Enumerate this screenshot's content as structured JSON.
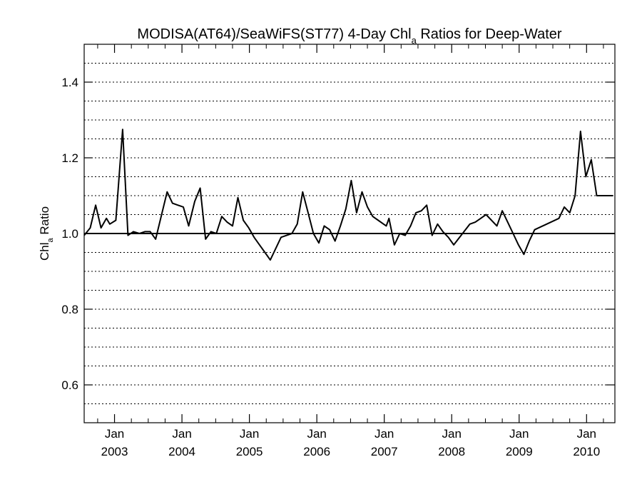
{
  "chart_data": {
    "type": "line",
    "title": {
      "main": "MODISA(AT64)/SeaWiFS(ST77) 4-Day Chl",
      "sub": "a",
      "rest": " Ratios for Deep-Water"
    },
    "ylabel": {
      "main": "Chl",
      "sub": "a",
      "rest": " Ratio"
    },
    "ylim": [
      0.5,
      1.5
    ],
    "yticks": [
      0.6,
      0.8,
      1.0,
      1.2,
      1.4
    ],
    "ytick_labels": [
      "0.6",
      "0.8",
      "1.0",
      "1.2",
      "1.4"
    ],
    "xlim": [
      2002.55,
      2010.42
    ],
    "xticks": [
      {
        "x": 2003.0,
        "month": "Jan",
        "year": "2003"
      },
      {
        "x": 2004.0,
        "month": "Jan",
        "year": "2004"
      },
      {
        "x": 2005.0,
        "month": "Jan",
        "year": "2005"
      },
      {
        "x": 2006.0,
        "month": "Jan",
        "year": "2006"
      },
      {
        "x": 2007.0,
        "month": "Jan",
        "year": "2007"
      },
      {
        "x": 2008.0,
        "month": "Jan",
        "year": "2008"
      },
      {
        "x": 2009.0,
        "month": "Jan",
        "year": "2009"
      },
      {
        "x": 2010.0,
        "month": "Jan",
        "year": "2010"
      }
    ],
    "grid": "horizontal-dotted",
    "reference_line": 1.0,
    "series": [
      {
        "x": [
          2002.55,
          2002.64,
          2002.72,
          2002.8,
          2002.88,
          2002.93,
          2003.02,
          2003.12,
          2003.2,
          2003.28,
          2003.37,
          2003.45,
          2003.53,
          2003.61,
          2003.78,
          2003.86,
          2003.94,
          2004.02,
          2004.1,
          2004.19,
          2004.27,
          2004.35,
          2004.43,
          2004.51,
          2004.59,
          2004.67,
          2004.75,
          2004.83,
          2004.91,
          2004.99,
          2005.07,
          2005.15,
          2005.23,
          2005.31,
          2005.47,
          2005.63,
          2005.71,
          2005.79,
          2005.87,
          2005.95,
          2006.03,
          2006.11,
          2006.19,
          2006.27,
          2006.35,
          2006.43,
          2006.51,
          2006.59,
          2006.67,
          2006.75,
          2006.83,
          2006.91,
          2006.99,
          2007.03,
          2007.07,
          2007.15,
          2007.23,
          2007.31,
          2007.39,
          2007.47,
          2007.55,
          2007.63,
          2007.71,
          2007.79,
          2007.87,
          2007.95,
          2008.03,
          2008.27,
          2008.35,
          2008.43,
          2008.51,
          2008.67,
          2008.75,
          2008.83,
          2008.91,
          2008.99,
          2009.07,
          2009.15,
          2009.23,
          2009.59,
          2009.67,
          2009.75,
          2009.83,
          2009.91,
          2009.99,
          2010.07,
          2010.15,
          2010.23,
          2010.31,
          2010.39
        ],
        "y": [
          0.995,
          1.015,
          1.075,
          1.015,
          1.04,
          1.025,
          1.035,
          1.275,
          0.995,
          1.005,
          1.0,
          1.005,
          1.005,
          0.985,
          1.11,
          1.08,
          1.075,
          1.07,
          1.02,
          1.085,
          1.12,
          0.985,
          1.005,
          1.0,
          1.045,
          1.03,
          1.02,
          1.095,
          1.035,
          1.015,
          0.99,
          0.97,
          0.95,
          0.93,
          0.99,
          1.0,
          1.025,
          1.11,
          1.055,
          1.0,
          0.975,
          1.02,
          1.01,
          0.98,
          1.02,
          1.065,
          1.14,
          1.055,
          1.11,
          1.07,
          1.045,
          1.035,
          1.025,
          1.02,
          1.04,
          0.97,
          1.0,
          0.995,
          1.02,
          1.055,
          1.06,
          1.075,
          0.995,
          1.025,
          1.005,
          0.99,
          0.97,
          1.025,
          1.03,
          1.04,
          1.05,
          1.02,
          1.06,
          1.03,
          1.0,
          0.97,
          0.945,
          0.98,
          1.01,
          1.04,
          1.07,
          1.055,
          1.1,
          1.27,
          1.15,
          1.195,
          1.1,
          1.1,
          1.1,
          1.1
        ]
      }
    ]
  }
}
